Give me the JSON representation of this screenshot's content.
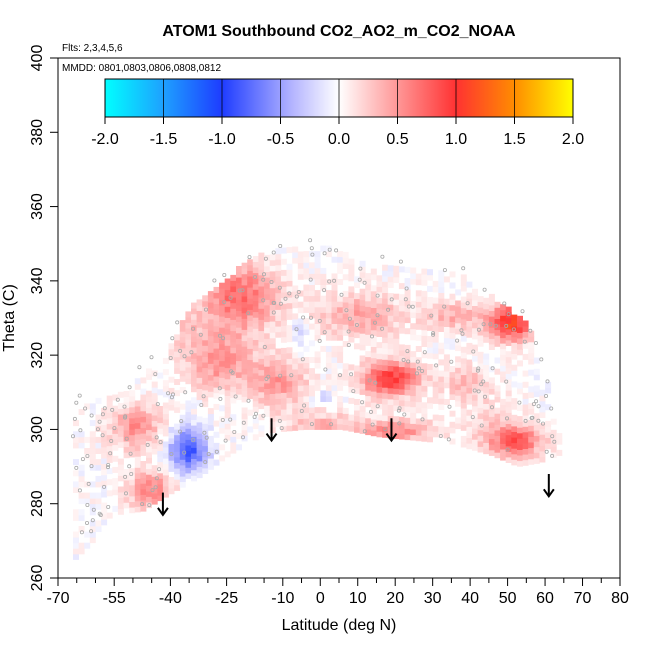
{
  "chart_data": {
    "type": "heatmap",
    "title": "ATOM1 Southbound CO2_AO2_m_CO2_NOAA",
    "flights_label": "Flts: 2,3,4,5,6",
    "mmdd_label": "MMDD: 0801,0803,0806,0808,0812",
    "xlabel": "Latitude (deg N)",
    "ylabel": "Theta (C)",
    "xlim": [
      -70,
      80
    ],
    "ylim": [
      260,
      400
    ],
    "x_ticks": [
      -70,
      -55,
      -40,
      -25,
      -10,
      0,
      10,
      20,
      30,
      40,
      50,
      60,
      70,
      80
    ],
    "x_ticklabels": [
      "-70",
      "-55",
      "-40",
      "-25",
      "-10",
      "0",
      "10",
      "20",
      "30",
      "40",
      "50",
      "60",
      "70",
      "80"
    ],
    "y_ticks": [
      260,
      280,
      300,
      320,
      340,
      360,
      380,
      400
    ],
    "y_ticklabels": [
      "260",
      "280",
      "300",
      "320",
      "340",
      "360",
      "380",
      "400"
    ],
    "colorbar": {
      "range": [
        -2.0,
        2.0
      ],
      "ticks": [
        -2.0,
        -1.5,
        -1.0,
        -0.5,
        0.0,
        0.5,
        1.0,
        1.5,
        2.0
      ],
      "ticklabels": [
        "-2.0",
        "-1.5",
        "-1.0",
        "-0.5",
        "0.0",
        "0.5",
        "1.0",
        "1.5",
        "2.0"
      ],
      "colors": [
        "#00ffff",
        "#1e90ff",
        "#1414ff",
        "#ffffff",
        "#ff3030",
        "#ff8c00",
        "#ffff00"
      ]
    },
    "arrows": [
      {
        "lat": -42,
        "theta": 283
      },
      {
        "lat": -13,
        "theta": 303
      },
      {
        "lat": 19,
        "theta": 303
      },
      {
        "lat": 61,
        "theta": 288
      }
    ],
    "field_blobs": [
      {
        "lat": -22,
        "theta": 335,
        "rlat": 10,
        "rth": 9,
        "v": 0.75
      },
      {
        "lat": -28,
        "theta": 318,
        "rlat": 9,
        "rth": 8,
        "v": 0.55
      },
      {
        "lat": -12,
        "theta": 312,
        "rlat": 8,
        "rth": 7,
        "v": 0.5
      },
      {
        "lat": 18,
        "theta": 313,
        "rlat": 8,
        "rth": 5,
        "v": 0.95
      },
      {
        "lat": 10,
        "theta": 330,
        "rlat": 12,
        "rth": 6,
        "v": 0.45
      },
      {
        "lat": 50,
        "theta": 328,
        "rlat": 6,
        "rth": 5,
        "v": 1.1
      },
      {
        "lat": 52,
        "theta": 296,
        "rlat": 7,
        "rth": 4,
        "v": 0.75
      },
      {
        "lat": 0,
        "theta": 300,
        "rlat": 10,
        "rth": 4,
        "v": 0.4
      },
      {
        "lat": 20,
        "theta": 299,
        "rlat": 10,
        "rth": 3,
        "v": 0.6
      },
      {
        "lat": -50,
        "theta": 300,
        "rlat": 7,
        "rth": 6,
        "v": 0.55
      },
      {
        "lat": -46,
        "theta": 283,
        "rlat": 6,
        "rth": 5,
        "v": 0.65
      },
      {
        "lat": -36,
        "theta": 294,
        "rlat": 5,
        "rth": 6,
        "v": -0.9
      },
      {
        "lat": -6,
        "theta": 325,
        "rlat": 3,
        "rth": 4,
        "v": -0.3
      },
      {
        "lat": 38,
        "theta": 312,
        "rlat": 6,
        "rth": 5,
        "v": 0.35
      },
      {
        "lat": -40,
        "theta": 328,
        "rlat": 7,
        "rth": 6,
        "v": 0.3
      },
      {
        "lat": 35,
        "theta": 330,
        "rlat": 8,
        "rth": 4,
        "v": 0.4
      },
      {
        "lat": 45,
        "theta": 300,
        "rlat": 8,
        "rth": 8,
        "v": 0.25
      },
      {
        "lat": 0,
        "theta": 308,
        "rlat": 4,
        "rth": 2,
        "v": -0.2
      }
    ],
    "grid": false
  }
}
